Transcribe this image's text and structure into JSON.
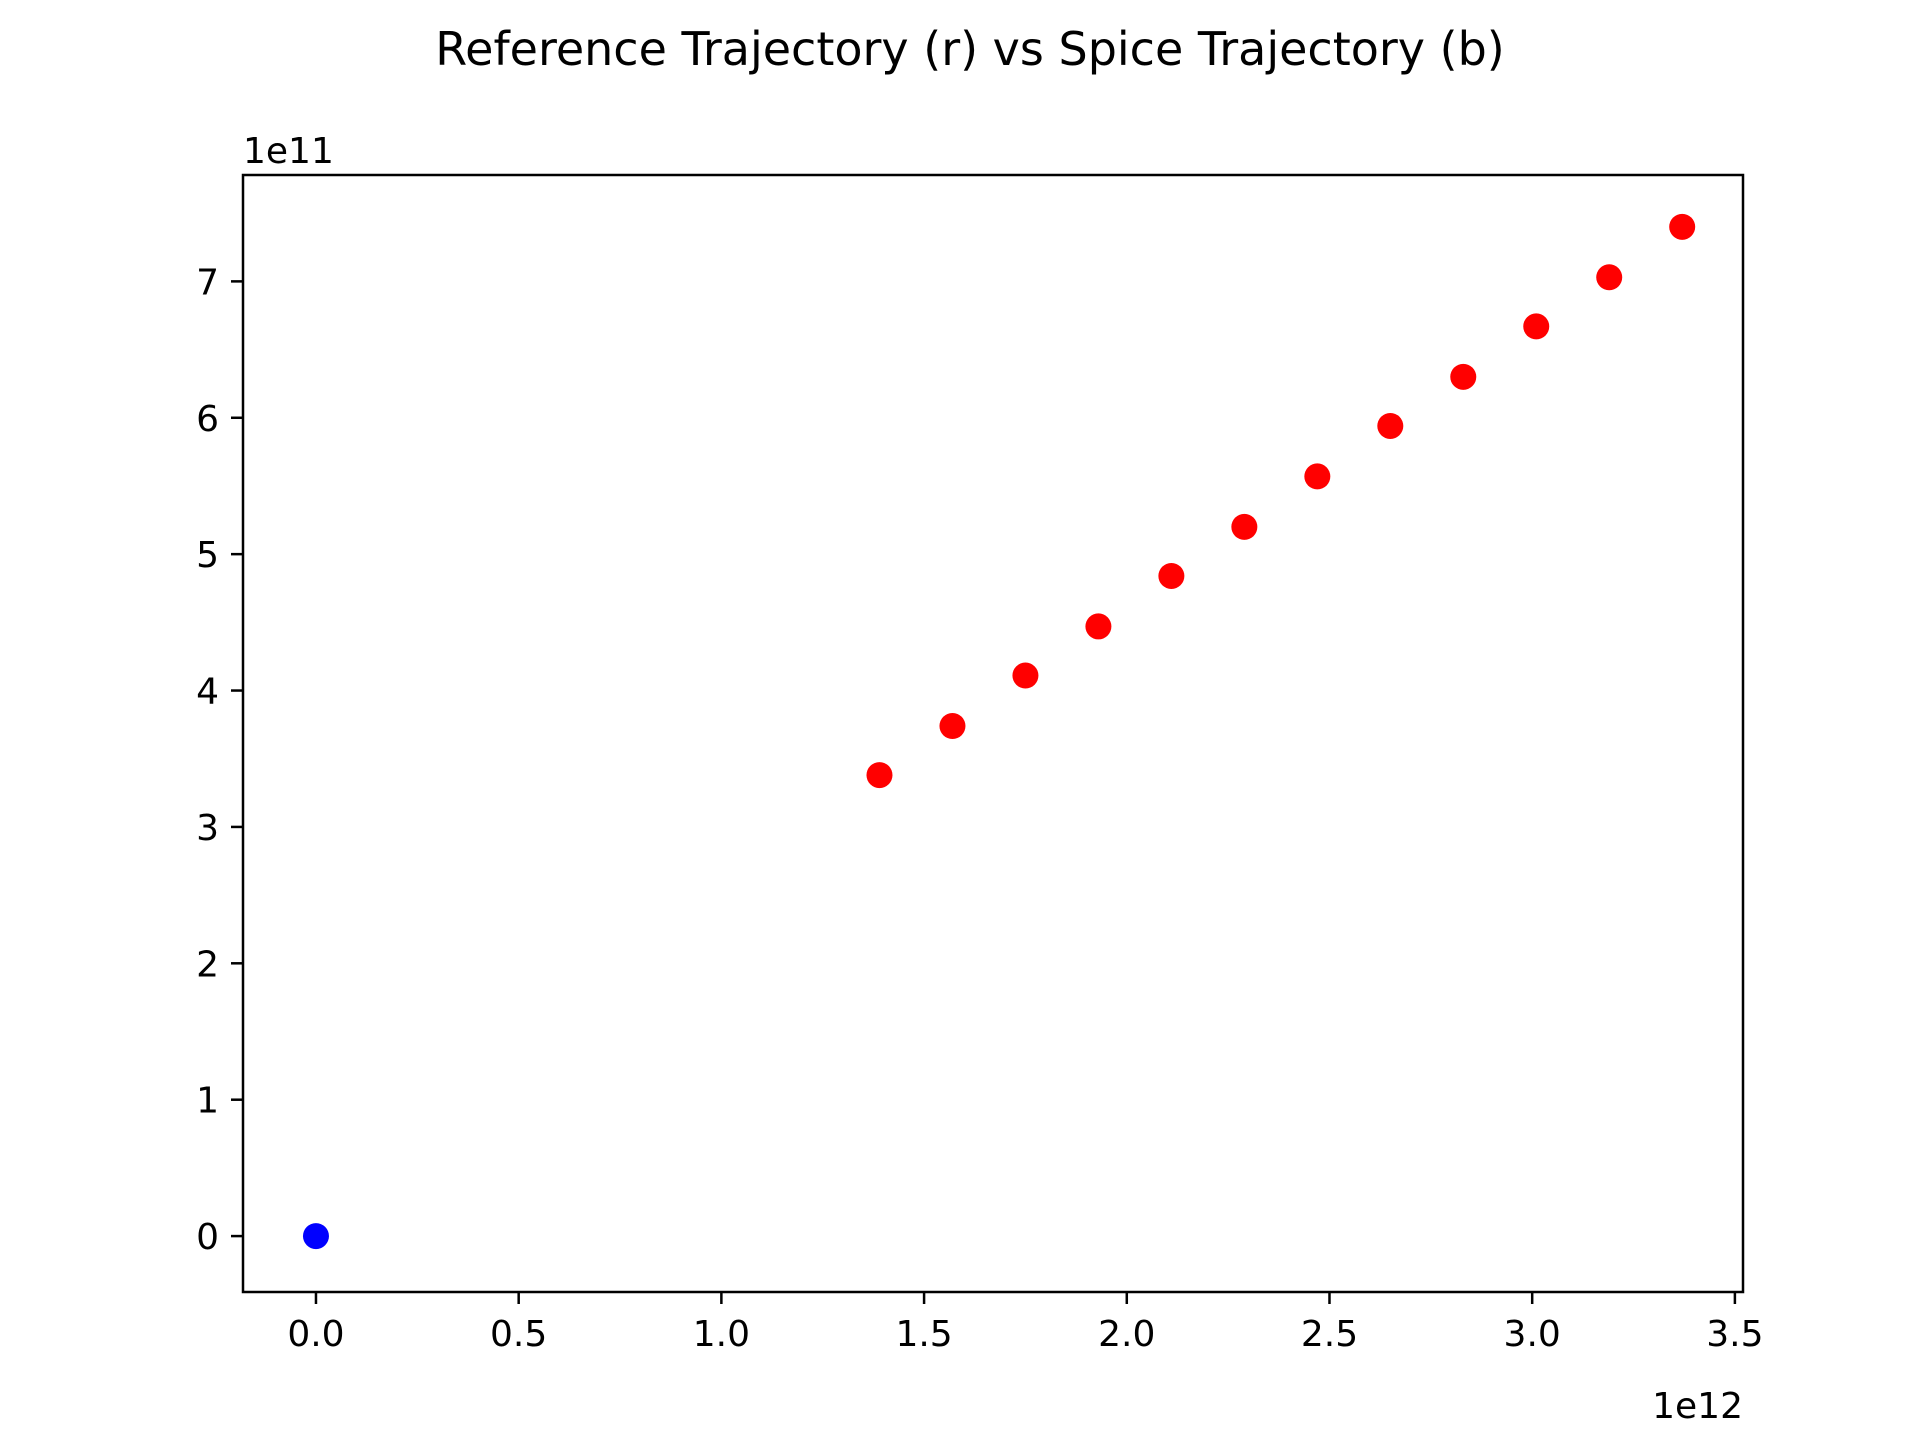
{
  "chart_data": {
    "type": "scatter",
    "title": "Reference Trajectory (r) vs Spice Trajectory (b)",
    "xlabel": "",
    "ylabel": "",
    "x_offset_text": "1e12",
    "y_offset_text": "1e11",
    "xlim": [
      -0.18,
      3.52
    ],
    "ylim": [
      -0.41,
      7.78
    ],
    "x_ticks": [
      {
        "value": 0.0,
        "label": "0.0"
      },
      {
        "value": 0.5,
        "label": "0.5"
      },
      {
        "value": 1.0,
        "label": "1.0"
      },
      {
        "value": 1.5,
        "label": "1.5"
      },
      {
        "value": 2.0,
        "label": "2.0"
      },
      {
        "value": 2.5,
        "label": "2.5"
      },
      {
        "value": 3.0,
        "label": "3.0"
      },
      {
        "value": 3.5,
        "label": "3.5"
      }
    ],
    "y_ticks": [
      {
        "value": 0,
        "label": "0"
      },
      {
        "value": 1,
        "label": "1"
      },
      {
        "value": 2,
        "label": "2"
      },
      {
        "value": 3,
        "label": "3"
      },
      {
        "value": 4,
        "label": "4"
      },
      {
        "value": 5,
        "label": "5"
      },
      {
        "value": 6,
        "label": "6"
      },
      {
        "value": 7,
        "label": "7"
      }
    ],
    "grid": false,
    "series": [
      {
        "color": "#ff0000",
        "points": [
          {
            "x": 1.39,
            "y": 3.38
          },
          {
            "x": 1.57,
            "y": 3.74
          },
          {
            "x": 1.75,
            "y": 4.11
          },
          {
            "x": 1.93,
            "y": 4.47
          },
          {
            "x": 2.11,
            "y": 4.84
          },
          {
            "x": 2.29,
            "y": 5.2
          },
          {
            "x": 2.47,
            "y": 5.57
          },
          {
            "x": 2.65,
            "y": 5.94
          },
          {
            "x": 2.83,
            "y": 6.3
          },
          {
            "x": 3.01,
            "y": 6.67
          },
          {
            "x": 3.19,
            "y": 7.03
          },
          {
            "x": 3.37,
            "y": 7.4
          }
        ]
      },
      {
        "color": "#0000ff",
        "points": [
          {
            "x": 0.0,
            "y": 0.0
          }
        ]
      }
    ]
  }
}
